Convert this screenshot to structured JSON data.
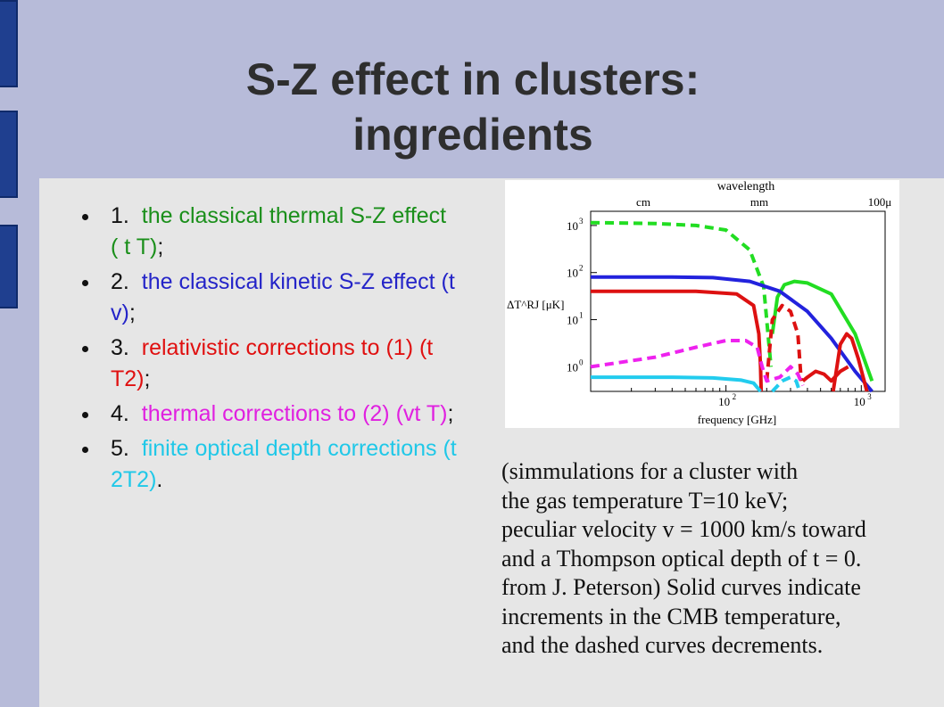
{
  "slide": {
    "title_line1": "S-Z effect in clusters:",
    "title_line2": "ingredients",
    "items": [
      {
        "num": "1.",
        "text": "the classical thermal S-Z effect (  t  T)",
        "tail": ";",
        "color": "#1a8f1a"
      },
      {
        "num": "2.",
        "text": "the classical kinetic S-Z effect (t v)",
        "tail": ";",
        "color": "#2424c8"
      },
      {
        "num": "3.",
        "text": "relativistic corrections to (1) (t T2)",
        "tail": ";",
        "color": "#e01010"
      },
      {
        "num": "4.",
        "text": "thermal corrections to (2) (vt T)",
        "tail": ";",
        "color": "#e020e0"
      },
      {
        "num": "5.",
        "text": "finite optical depth corrections (t 2T2)",
        "tail": ".",
        "color": "#20c8e8"
      }
    ],
    "caption_lines": [
      "(simmulations  for a cluster with",
      "the gas temperature T=10  keV;",
      "peculiar velocity v =  1000  km/s toward",
      "and a Thompson optical depth of t = 0.",
      "from J. Peterson)  Solid curves indicate",
      "increments in the CMB temperature,",
      "and the dashed curves decrements."
    ]
  },
  "chart_data": {
    "type": "line",
    "xlabel": "frequency [GHz]",
    "ylabel": "ΔT^RJ [μK]",
    "top_axis_label": "wavelength",
    "top_tick_labels": [
      "cm",
      "mm",
      "100μ"
    ],
    "x_scale": "log",
    "y_scale": "log",
    "xlim": [
      10,
      1500
    ],
    "ylim": [
      0.3,
      2000
    ],
    "x_tick_labels": [
      {
        "v": 100,
        "label": "10",
        "exp": "2"
      },
      {
        "v": 1000,
        "label": "10",
        "exp": "3"
      }
    ],
    "y_tick_labels": [
      {
        "v": 1,
        "label": "10",
        "exp": "0"
      },
      {
        "v": 10,
        "label": "10",
        "exp": "1"
      },
      {
        "v": 100,
        "label": "10",
        "exp": "2"
      },
      {
        "v": 1000,
        "label": "10",
        "exp": "3"
      }
    ],
    "series": [
      {
        "id": "thermal-dec",
        "color": "#22dd22",
        "dashed": true,
        "x": [
          10,
          30,
          60,
          100,
          150,
          190,
          215
        ],
        "y": [
          1150,
          1100,
          1000,
          800,
          300,
          50,
          1
        ]
      },
      {
        "id": "thermal-inc",
        "color": "#22dd22",
        "dashed": false,
        "x": [
          220,
          240,
          270,
          320,
          400,
          600,
          900,
          1200
        ],
        "y": [
          5,
          30,
          55,
          65,
          60,
          35,
          5,
          0.5
        ]
      },
      {
        "id": "kinetic",
        "color": "#2222dd",
        "dashed": false,
        "x": [
          10,
          40,
          80,
          150,
          250,
          400,
          600,
          900,
          1200
        ],
        "y": [
          80,
          80,
          78,
          65,
          40,
          15,
          4,
          0.8,
          0.2
        ]
      },
      {
        "id": "relativistic-a",
        "color": "#dd1111",
        "dashed": false,
        "x": [
          10,
          60,
          120,
          160,
          175,
          180,
          182
        ],
        "y": [
          40,
          40,
          35,
          20,
          5,
          1,
          0.3
        ]
      },
      {
        "id": "relativistic-b",
        "color": "#dd1111",
        "dashed": true,
        "x": [
          200,
          220,
          260,
          300,
          340,
          360
        ],
        "y": [
          0.5,
          10,
          20,
          15,
          5,
          0.5
        ]
      },
      {
        "id": "relativistic-c",
        "color": "#dd1111",
        "dashed": false,
        "x": [
          370,
          400,
          460,
          530,
          600,
          700,
          800
        ],
        "y": [
          0.5,
          0.6,
          0.8,
          0.7,
          0.5,
          0.8,
          1
        ]
      },
      {
        "id": "relativistic-d",
        "color": "#dd1111",
        "dashed": false,
        "x": [
          620,
          700,
          780,
          850,
          950,
          1050,
          1100
        ],
        "y": [
          0.3,
          3,
          5,
          4,
          1.5,
          0.5,
          0.3
        ]
      },
      {
        "id": "thermal-kin",
        "color": "#ee22ee",
        "dashed": true,
        "x": [
          10,
          30,
          60,
          100,
          140,
          170,
          185,
          200,
          250,
          300,
          340,
          370
        ],
        "y": [
          1,
          1.6,
          2.6,
          3.6,
          3.6,
          2.6,
          1,
          0.5,
          0.6,
          1,
          0.7,
          0.4
        ]
      },
      {
        "id": "optical-a",
        "color": "#22ccee",
        "dashed": false,
        "x": [
          10,
          40,
          80,
          130,
          160,
          180
        ],
        "y": [
          0.6,
          0.6,
          0.58,
          0.52,
          0.45,
          0.3
        ]
      },
      {
        "id": "optical-b",
        "color": "#22ccee",
        "dashed": true,
        "x": [
          220,
          260,
          300,
          330,
          350
        ],
        "y": [
          0.3,
          0.5,
          0.6,
          0.5,
          0.3
        ]
      }
    ]
  }
}
